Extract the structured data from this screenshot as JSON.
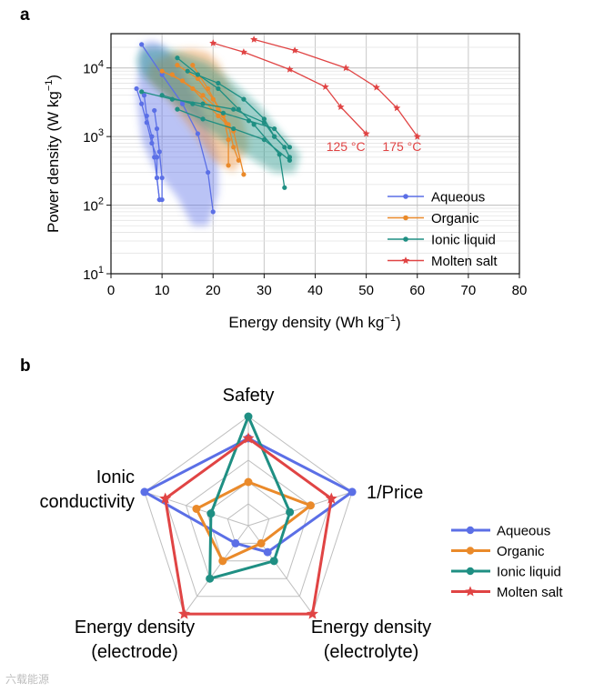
{
  "figure": {
    "panel_a_label": "a",
    "panel_b_label": "b",
    "watermark": "六载能源"
  },
  "chart_data": [
    {
      "type": "scatter",
      "panel": "a",
      "xlabel": "Energy density (Wh kg",
      "xlabel_sup": "−1",
      "xlabel_end": ")",
      "ylabel": "Power density (W kg",
      "ylabel_sup": "−1",
      "ylabel_end": ")",
      "xlim": [
        0,
        80
      ],
      "ylim_log10": [
        1,
        4.5
      ],
      "xticks": [
        0,
        10,
        20,
        30,
        40,
        50,
        60,
        70,
        80
      ],
      "yticks": [
        {
          "exp": 1,
          "base": "10",
          "sup": "1"
        },
        {
          "exp": 2,
          "base": "10",
          "sup": "2"
        },
        {
          "exp": 3,
          "base": "10",
          "sup": "3"
        },
        {
          "exp": 4,
          "base": "10",
          "sup": "4"
        }
      ],
      "grid": true,
      "legend_position": "bottom-right",
      "series": [
        {
          "name": "Aqueous",
          "color": "#5b6fe6",
          "marker": "circle",
          "region": [
            [
              5,
              4000
            ],
            [
              5.5,
              10000
            ],
            [
              6,
              22000
            ],
            [
              8,
              25000
            ],
            [
              10,
              22000
            ],
            [
              13,
              12000
            ],
            [
              16,
              4500
            ],
            [
              19,
              1600
            ],
            [
              21,
              500
            ],
            [
              21,
              150
            ],
            [
              19,
              50
            ],
            [
              16,
              50
            ],
            [
              13,
              130
            ],
            [
              10,
              250
            ],
            [
              8,
              400
            ],
            [
              6,
              900
            ]
          ],
          "lines": [
            [
              [
                6,
                22000
              ],
              [
                10,
                8000
              ],
              [
                14,
                3000
              ],
              [
                17,
                1100
              ],
              [
                19,
                300
              ],
              [
                20,
                80
              ]
            ],
            [
              [
                5,
                5000
              ],
              [
                6,
                3000
              ],
              [
                7,
                1600
              ],
              [
                8,
                800
              ],
              [
                9,
                500
              ],
              [
                9,
                250
              ],
              [
                9.5,
                120
              ]
            ],
            [
              [
                6.5,
                4000
              ],
              [
                7,
                2000
              ],
              [
                8,
                1000
              ],
              [
                8.5,
                500
              ],
              [
                9,
                250
              ],
              [
                9.5,
                120
              ]
            ],
            [
              [
                8.5,
                2400
              ],
              [
                9,
                1300
              ],
              [
                9.5,
                600
              ],
              [
                10,
                250
              ],
              [
                10,
                120
              ]
            ]
          ]
        },
        {
          "name": "Organic",
          "color": "#ea8a2a",
          "marker": "circle",
          "region": [
            [
              8,
              12000
            ],
            [
              10,
              14000
            ],
            [
              13,
              18000
            ],
            [
              16,
              19000
            ],
            [
              19,
              17000
            ],
            [
              21,
              12000
            ],
            [
              24,
              4000
            ],
            [
              26,
              1700
            ],
            [
              27,
              700
            ],
            [
              24,
              300
            ],
            [
              20,
              450
            ],
            [
              16,
              1200
            ],
            [
              12,
              3000
            ],
            [
              10,
              4500
            ],
            [
              8,
              6000
            ],
            [
              7,
              8000
            ]
          ],
          "lines": [
            [
              [
                10,
                9000
              ],
              [
                14,
                6500
              ],
              [
                18,
                4000
              ],
              [
                21,
                2500
              ],
              [
                23,
                1400
              ]
            ],
            [
              [
                13,
                11000
              ],
              [
                17,
                7000
              ],
              [
                20,
                3500
              ],
              [
                23,
                1500
              ],
              [
                24,
                700
              ],
              [
                25,
                450
              ]
            ],
            [
              [
                16,
                11000
              ],
              [
                19,
                5000
              ],
              [
                22,
                2000
              ],
              [
                23,
                900
              ],
              [
                23,
                380
              ]
            ],
            [
              [
                12,
                8000
              ],
              [
                16,
                5000
              ],
              [
                21,
                2000
              ],
              [
                24,
                1200
              ],
              [
                26,
                280
              ]
            ]
          ]
        },
        {
          "name": "Ionic liquid",
          "color": "#1f8f83",
          "marker": "circle",
          "region": [
            [
              5,
              13000
            ],
            [
              6,
              19000
            ],
            [
              9,
              20000
            ],
            [
              13,
              17000
            ],
            [
              19,
              12000
            ],
            [
              24,
              6000
            ],
            [
              29,
              2800
            ],
            [
              33,
              1200
            ],
            [
              37,
              550
            ],
            [
              36,
              300
            ],
            [
              32,
              300
            ],
            [
              27,
              500
            ],
            [
              20,
              1100
            ],
            [
              14,
              2500
            ],
            [
              9,
              5000
            ],
            [
              6,
              8000
            ]
          ],
          "lines": [
            [
              [
                13,
                14000
              ],
              [
                17,
                8000
              ],
              [
                21,
                5000
              ],
              [
                25,
                2500
              ],
              [
                28,
                1500
              ],
              [
                33,
                550
              ],
              [
                34,
                180
              ]
            ],
            [
              [
                13,
                2500
              ],
              [
                18,
                1800
              ],
              [
                24,
                1300
              ],
              [
                30,
                900
              ],
              [
                35,
                450
              ]
            ],
            [
              [
                10,
                4000
              ],
              [
                16,
                3000
              ],
              [
                22,
                2200
              ],
              [
                27,
                1700
              ],
              [
                32,
                1300
              ],
              [
                35,
                700
              ]
            ],
            [
              [
                6,
                4500
              ],
              [
                12,
                3500
              ],
              [
                18,
                3000
              ],
              [
                24,
                2500
              ],
              [
                30,
                1600
              ],
              [
                32,
                1000
              ],
              [
                34,
                700
              ],
              [
                35,
                500
              ]
            ],
            [
              [
                15,
                9000
              ],
              [
                21,
                6000
              ],
              [
                26,
                3500
              ],
              [
                30,
                1800
              ],
              [
                32,
                1000
              ]
            ]
          ]
        },
        {
          "name": "Molten salt",
          "color": "#e04444",
          "marker": "star",
          "lines": [
            [
              [
                20,
                23000
              ],
              [
                26,
                17000
              ],
              [
                35,
                9500
              ],
              [
                42,
                5300
              ],
              [
                45,
                2700
              ],
              [
                50,
                1100
              ]
            ],
            [
              [
                28,
                26000
              ],
              [
                36,
                18000
              ],
              [
                46,
                10000
              ],
              [
                52,
                5200
              ],
              [
                56,
                2600
              ],
              [
                60,
                1000
              ]
            ]
          ],
          "annotations": [
            {
              "text": "125 °C",
              "x": 46,
              "y": 620
            },
            {
              "text": "175 °C",
              "x": 57,
              "y": 620
            }
          ]
        }
      ]
    },
    {
      "type": "radar",
      "panel": "b",
      "axes": [
        {
          "lines": [
            "Safety"
          ]
        },
        {
          "lines": [
            "1/Price"
          ]
        },
        {
          "lines": [
            "Energy density",
            "(electrolyte)"
          ]
        },
        {
          "lines": [
            "Energy density",
            "(electrode)"
          ]
        },
        {
          "lines": [
            "Ionic",
            "conductivity"
          ]
        }
      ],
      "rmax": 5,
      "rings": [
        1,
        2,
        3,
        4,
        5
      ],
      "series": [
        {
          "name": "Aqueous",
          "color": "#5b6fe6",
          "marker": "circle",
          "values": [
            4,
            5,
            1.5,
            1,
            5
          ]
        },
        {
          "name": "Organic",
          "color": "#ea8a2a",
          "marker": "circle",
          "values": [
            2,
            3,
            1,
            2,
            2.5
          ]
        },
        {
          "name": "Ionic liquid",
          "color": "#1f8f83",
          "marker": "circle",
          "values": [
            5,
            2,
            2,
            3,
            1.8
          ]
        },
        {
          "name": "Molten salt",
          "color": "#e04444",
          "marker": "star",
          "values": [
            4,
            4,
            5,
            5,
            4
          ]
        }
      ]
    }
  ]
}
